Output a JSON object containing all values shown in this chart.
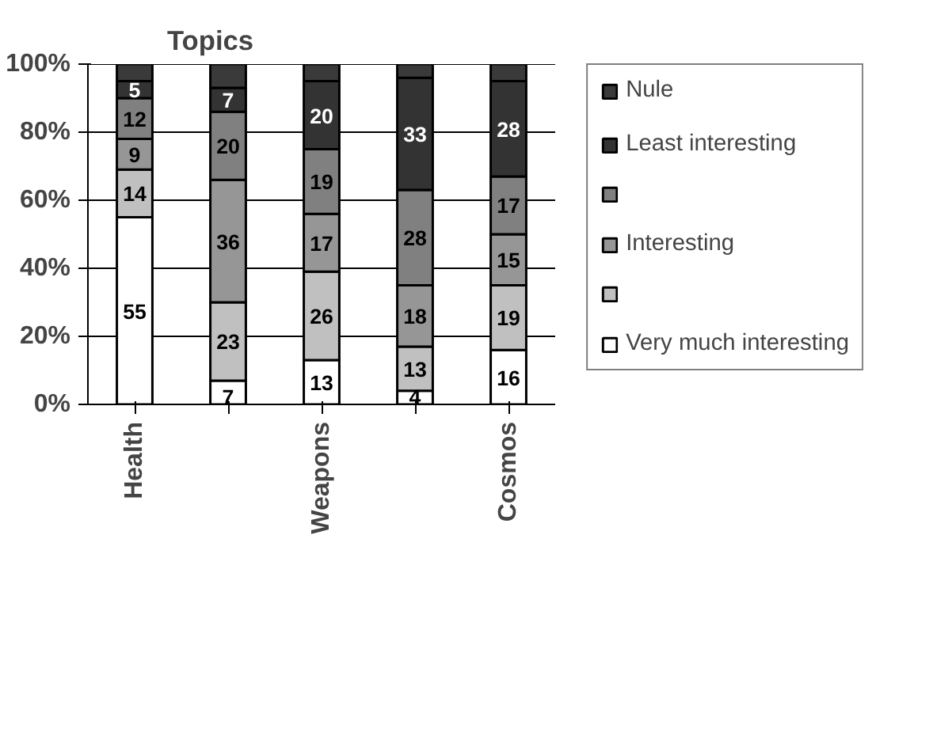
{
  "chart_data": {
    "type": "bar",
    "stacked": true,
    "title": "Topics",
    "categories": [
      "Health",
      null,
      "Weapons",
      null,
      "Cosmos"
    ],
    "ylim": [
      0,
      100
    ],
    "yticks": [
      {
        "value": 0,
        "label": "0%"
      },
      {
        "value": 20,
        "label": "20%"
      },
      {
        "value": 40,
        "label": "40%"
      },
      {
        "value": 60,
        "label": "60%"
      },
      {
        "value": 80,
        "label": "80%"
      },
      {
        "value": 100,
        "label": "100%"
      }
    ],
    "grid": "y",
    "legend": "right",
    "series": [
      {
        "name": "Very much interesting",
        "color": "#ffffff",
        "values": [
          55,
          7,
          13,
          4,
          16
        ],
        "value_labels": [
          "55",
          "7",
          "13",
          "4",
          "16"
        ]
      },
      {
        "color": "#c0c0c0",
        "values": [
          14,
          23,
          26,
          13,
          19
        ],
        "value_labels": [
          "14",
          "23",
          "26",
          "13",
          "19"
        ]
      },
      {
        "name": "Interesting",
        "color": "#969696",
        "values": [
          9,
          36,
          17,
          18,
          15
        ],
        "value_labels": [
          "9",
          "36",
          "17",
          "18",
          "15"
        ]
      },
      {
        "color": "#808080",
        "values": [
          12,
          20,
          19,
          28,
          17
        ],
        "value_labels": [
          "12",
          "20",
          "19",
          "28",
          "17"
        ]
      },
      {
        "name": "Least interesting",
        "color": "#333333",
        "values": [
          5,
          7,
          20,
          33,
          28
        ],
        "value_labels": [
          "5",
          "7",
          "20",
          "33",
          "28"
        ]
      },
      {
        "name": "Nule",
        "color": "#3a3a3a",
        "values": [
          5,
          7,
          5,
          4,
          5
        ]
      }
    ]
  }
}
